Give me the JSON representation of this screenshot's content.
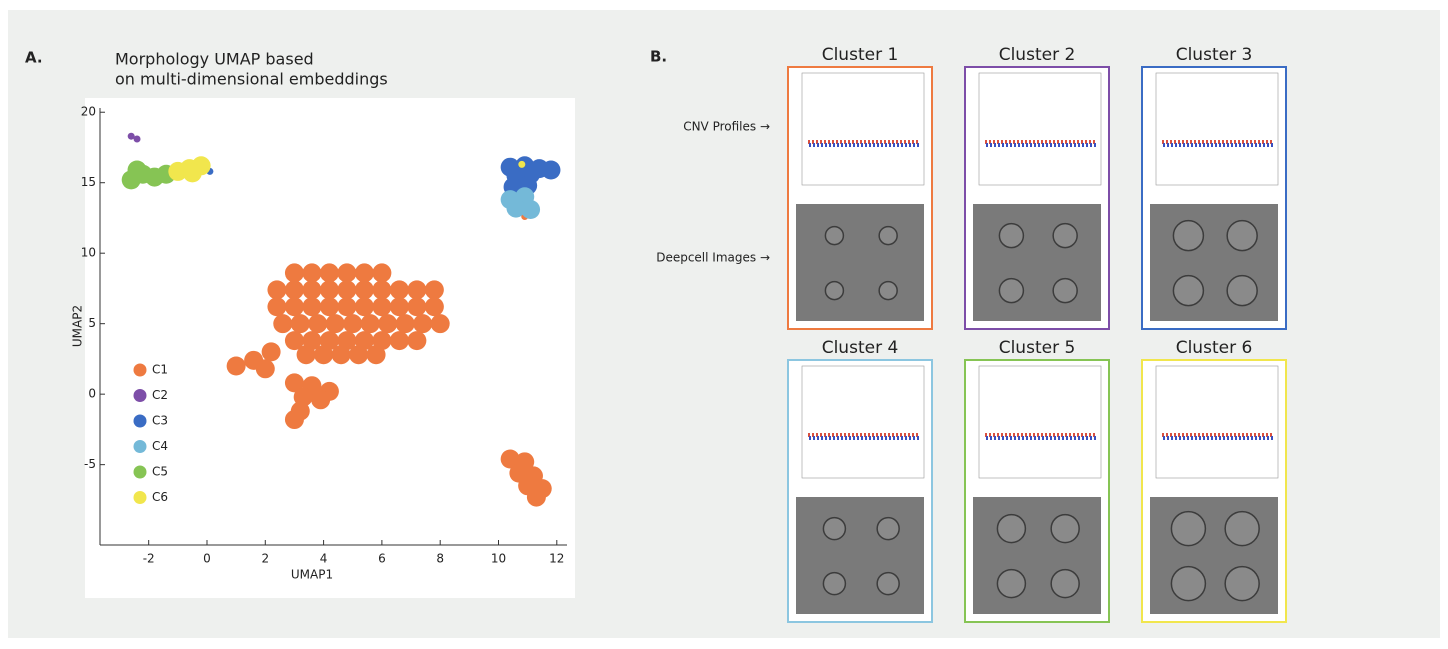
{
  "chart_data": {
    "type": "scatter",
    "panel_label": "A.",
    "title": [
      "Morphology UMAP based",
      "on multi-dimensional embeddings"
    ],
    "x_label": "UMAP1",
    "y_label": "UMAP2",
    "xlim": [
      -3.67,
      12.35
    ],
    "ylim": [
      -10.7,
      20.3
    ],
    "xticks": [
      -2,
      0,
      2,
      4,
      6,
      8,
      10,
      12
    ],
    "yticks": [
      -5,
      0,
      5,
      10,
      15,
      20
    ],
    "legend": "lower left",
    "series": [
      {
        "name": "C1",
        "color": "#ee7a40",
        "x": [
          3.0,
          3.6,
          4.2,
          4.8,
          5.4,
          6.0,
          2.4,
          3.0,
          3.6,
          4.2,
          4.8,
          5.4,
          6.0,
          6.6,
          7.2,
          7.8,
          2.4,
          3.0,
          3.6,
          4.2,
          4.8,
          5.4,
          6.0,
          6.6,
          7.2,
          7.8,
          2.6,
          3.2,
          3.8,
          4.4,
          5.0,
          5.6,
          6.2,
          6.8,
          7.4,
          8.0,
          3.0,
          3.6,
          4.2,
          4.8,
          5.4,
          6.0,
          6.6,
          7.2,
          3.4,
          4.0,
          4.6,
          5.2,
          5.8,
          2.2,
          1.6,
          1.0,
          2.0,
          3.0,
          3.6,
          4.2,
          3.3,
          3.9,
          3.2,
          3.0,
          10.4,
          10.9,
          10.7,
          11.2,
          11.0,
          11.5,
          11.3,
          10.9
        ],
        "y": [
          8.6,
          8.6,
          8.6,
          8.6,
          8.6,
          8.6,
          7.4,
          7.4,
          7.4,
          7.4,
          7.4,
          7.4,
          7.4,
          7.4,
          7.4,
          7.4,
          6.2,
          6.2,
          6.2,
          6.2,
          6.2,
          6.2,
          6.2,
          6.2,
          6.2,
          6.2,
          5.0,
          5.0,
          5.0,
          5.0,
          5.0,
          5.0,
          5.0,
          5.0,
          5.0,
          5.0,
          3.8,
          3.8,
          3.8,
          3.8,
          3.8,
          3.8,
          3.8,
          3.8,
          2.8,
          2.8,
          2.8,
          2.8,
          2.8,
          3.0,
          2.4,
          2.0,
          1.8,
          0.8,
          0.6,
          0.2,
          -0.2,
          -0.4,
          -1.2,
          -1.8,
          -4.6,
          -4.8,
          -5.6,
          -5.8,
          -6.5,
          -6.7,
          -7.3,
          12.6
        ]
      },
      {
        "name": "C2",
        "color": "#7d4ea8",
        "x": [
          -2.6,
          -2.4
        ],
        "y": [
          18.3,
          18.1
        ]
      },
      {
        "name": "C3",
        "color": "#3a6cc4",
        "x": [
          10.4,
          10.9,
          11.4,
          11.8,
          10.6,
          11.1,
          10.5,
          11.0,
          0.1
        ],
        "y": [
          16.1,
          16.2,
          16.0,
          15.9,
          15.5,
          15.6,
          14.7,
          14.8,
          15.8
        ]
      },
      {
        "name": "C4",
        "color": "#74b9d8",
        "x": [
          10.4,
          10.9,
          10.6,
          11.1
        ],
        "y": [
          13.8,
          14.0,
          13.2,
          13.1
        ]
      },
      {
        "name": "C5",
        "color": "#86c454",
        "x": [
          -2.6,
          -2.2,
          -1.8,
          -2.4,
          -1.4
        ],
        "y": [
          15.2,
          15.6,
          15.4,
          15.9,
          15.6
        ]
      },
      {
        "name": "C6",
        "color": "#f1e64d",
        "x": [
          -1.0,
          -0.6,
          -0.2,
          -0.5,
          10.8
        ],
        "y": [
          15.8,
          16.0,
          16.2,
          15.7,
          16.3
        ]
      }
    ]
  },
  "panel_b": {
    "label": "B.",
    "row_labels": [
      "CNV Profiles →",
      "Deepcell Images →"
    ],
    "clusters": [
      {
        "title": "Cluster 1",
        "color": "#ee7a40"
      },
      {
        "title": "Cluster 2",
        "color": "#7d4ea8"
      },
      {
        "title": "Cluster 3",
        "color": "#3a6cc4"
      },
      {
        "title": "Cluster 4",
        "color": "#8cc6e0"
      },
      {
        "title": "Cluster 5",
        "color": "#86c454"
      },
      {
        "title": "Cluster 6",
        "color": "#f1e64d"
      }
    ]
  }
}
